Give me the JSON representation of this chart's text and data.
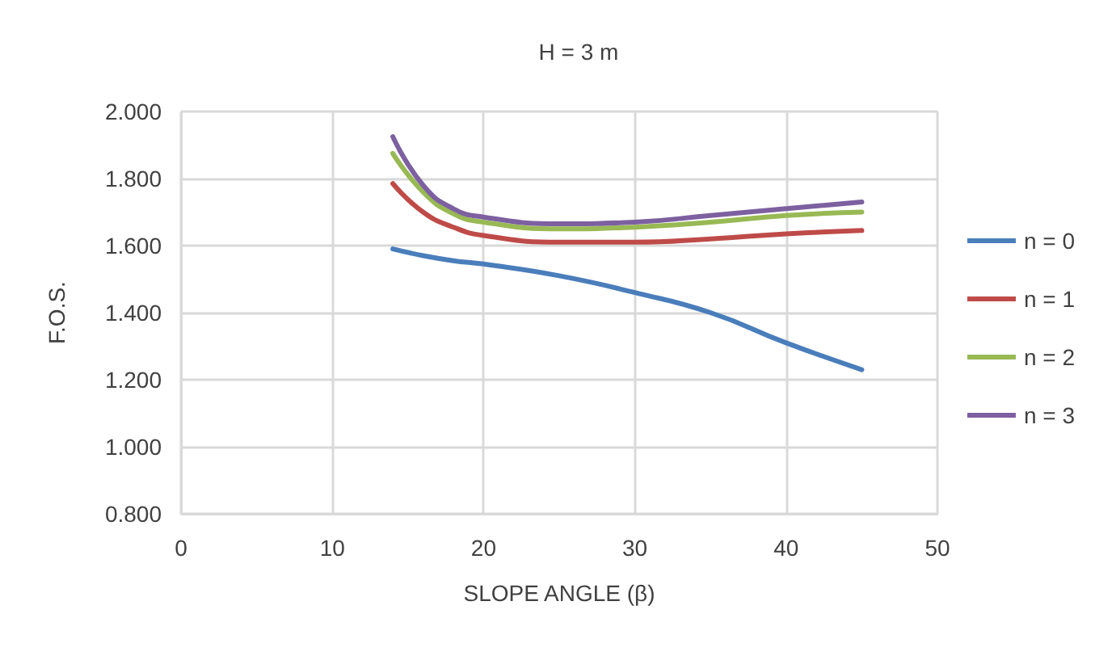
{
  "chart_data": {
    "type": "line",
    "title": "H = 3 m",
    "xlabel": "SLOPE ANGLE (β)",
    "ylabel": "F.O.S.",
    "x": [
      14,
      16,
      18,
      20,
      25,
      30,
      35,
      40,
      45
    ],
    "series": [
      {
        "name": "n = 0",
        "color": "#4a7ebb",
        "values": [
          1.59,
          1.57,
          1.555,
          1.545,
          1.51,
          1.46,
          1.4,
          1.31,
          1.23
        ]
      },
      {
        "name": "n = 1",
        "color": "#be4b48",
        "values": [
          1.785,
          1.7,
          1.655,
          1.63,
          1.61,
          1.61,
          1.62,
          1.635,
          1.645
        ]
      },
      {
        "name": "n = 2",
        "color": "#98b954",
        "values": [
          1.875,
          1.76,
          1.695,
          1.67,
          1.65,
          1.655,
          1.67,
          1.69,
          1.7
        ]
      },
      {
        "name": "n = 3",
        "color": "#7d60a0",
        "values": [
          1.925,
          1.78,
          1.71,
          1.685,
          1.665,
          1.67,
          1.69,
          1.71,
          1.73
        ]
      }
    ],
    "xlim": [
      0,
      50
    ],
    "xticks": [
      0,
      10,
      20,
      30,
      40,
      50
    ],
    "ylim": [
      0.8,
      2.0
    ],
    "yticks": [
      {
        "value": 0.8,
        "label": "0.800"
      },
      {
        "value": 1.0,
        "label": "1.000"
      },
      {
        "value": 1.2,
        "label": "1.200"
      },
      {
        "value": 1.4,
        "label": "1.400"
      },
      {
        "value": 1.6,
        "label": "1.600"
      },
      {
        "value": 1.8,
        "label": "1.800"
      },
      {
        "value": 2.0,
        "label": "2.000"
      }
    ],
    "grid": true,
    "legend": "right",
    "marker": "none",
    "line_style": "solid"
  }
}
